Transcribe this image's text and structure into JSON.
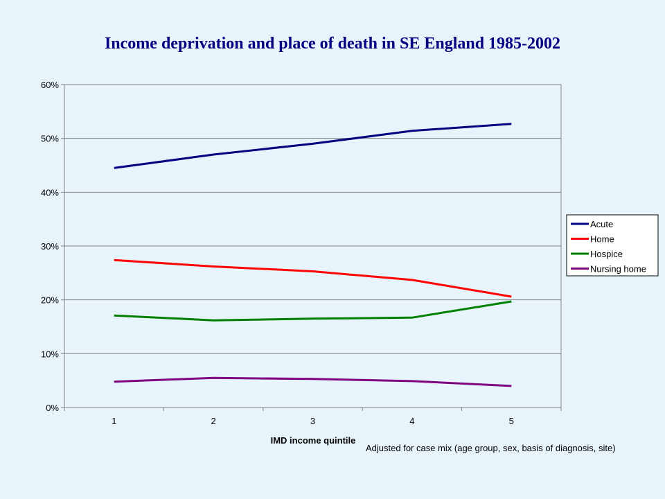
{
  "chart_data": {
    "type": "line",
    "title": "Income deprivation and place of death in SE England 1985-2002",
    "xlabel": "IMD income quintile",
    "ylabel": "",
    "note": "Adjusted for case mix (age group, sex, basis of diagnosis, site)",
    "categories": [
      "1",
      "2",
      "3",
      "4",
      "5"
    ],
    "ylim": [
      0,
      0.6
    ],
    "y_ticks": [
      0,
      0.1,
      0.2,
      0.3,
      0.4,
      0.5,
      0.6
    ],
    "y_tick_labels": [
      "0%",
      "10%",
      "20%",
      "30%",
      "40%",
      "50%",
      "60%"
    ],
    "grid": true,
    "legend_position": "right",
    "series": [
      {
        "name": "Acute",
        "color": "#000080",
        "values": [
          0.445,
          0.47,
          0.49,
          0.514,
          0.527
        ]
      },
      {
        "name": "Home",
        "color": "#FF0000",
        "values": [
          0.274,
          0.262,
          0.253,
          0.237,
          0.206
        ]
      },
      {
        "name": "Hospice",
        "color": "#008000",
        "values": [
          0.171,
          0.162,
          0.165,
          0.167,
          0.197
        ]
      },
      {
        "name": "Nursing home",
        "color": "#800080",
        "values": [
          0.048,
          0.055,
          0.053,
          0.049,
          0.04
        ]
      }
    ]
  }
}
